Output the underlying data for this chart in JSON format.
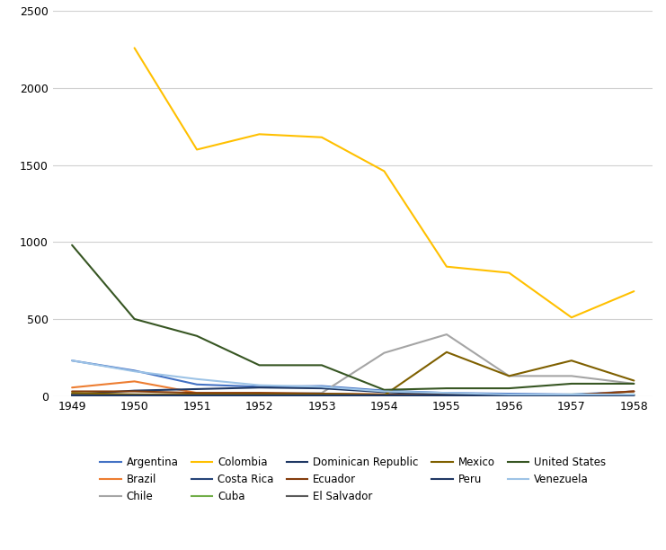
{
  "years": [
    1949,
    1950,
    1951,
    1952,
    1953,
    1954,
    1955,
    1956,
    1957,
    1958
  ],
  "series": {
    "Argentina": {
      "color": "#4472C4",
      "values": [
        230,
        165,
        75,
        60,
        65,
        35,
        20,
        15,
        10,
        30
      ]
    },
    "Brazil": {
      "color": "#ED7D31",
      "values": [
        55,
        95,
        20,
        20,
        15,
        10,
        5,
        5,
        5,
        30
      ]
    },
    "Chile": {
      "color": "#A5A5A5",
      "values": [
        5,
        5,
        5,
        15,
        20,
        280,
        400,
        130,
        130,
        80
      ]
    },
    "Colombia": {
      "color": "#FFC000",
      "values": [
        null,
        2260,
        1600,
        1700,
        1680,
        1460,
        840,
        800,
        510,
        680
      ]
    },
    "Costa Rica": {
      "color": "#264478",
      "values": [
        5,
        10,
        5,
        5,
        5,
        2,
        2,
        2,
        2,
        2
      ]
    },
    "Cuba": {
      "color": "#70AD47",
      "values": [
        5,
        5,
        5,
        10,
        15,
        5,
        5,
        5,
        10,
        10
      ]
    },
    "Dominican Republic": {
      "color": "#1F3864",
      "values": [
        10,
        35,
        45,
        55,
        50,
        25,
        10,
        5,
        5,
        5
      ]
    },
    "Ecuador": {
      "color": "#843C0C",
      "values": [
        30,
        30,
        20,
        20,
        15,
        10,
        5,
        5,
        5,
        30
      ]
    },
    "El Salvador": {
      "color": "#595959",
      "values": [
        10,
        5,
        5,
        5,
        5,
        5,
        5,
        5,
        5,
        5
      ]
    },
    "Mexico": {
      "color": "#7F6000",
      "values": [
        20,
        10,
        10,
        10,
        10,
        5,
        285,
        130,
        230,
        100
      ]
    },
    "Peru": {
      "color": "#203864",
      "values": [
        5,
        5,
        5,
        5,
        5,
        5,
        5,
        5,
        5,
        5
      ]
    },
    "United States": {
      "color": "#375623",
      "values": [
        980,
        500,
        390,
        200,
        200,
        40,
        50,
        50,
        80,
        80
      ]
    },
    "Venezuela": {
      "color": "#9DC3E6",
      "values": [
        230,
        160,
        110,
        70,
        60,
        30,
        20,
        10,
        10,
        10
      ]
    }
  },
  "legend_order": [
    "Argentina",
    "Brazil",
    "Chile",
    "Colombia",
    "Costa Rica",
    "Cuba",
    "Dominican Republic",
    "Ecuador",
    "El Salvador",
    "Mexico",
    "Peru",
    "United States",
    "Venezuela"
  ],
  "ylim": [
    0,
    2500
  ],
  "yticks": [
    0,
    500,
    1000,
    1500,
    2000,
    2500
  ],
  "xticks": [
    1949,
    1950,
    1951,
    1952,
    1953,
    1954,
    1955,
    1956,
    1957,
    1958
  ],
  "background_color": "#FFFFFF",
  "grid_color": "#D0D0D0"
}
